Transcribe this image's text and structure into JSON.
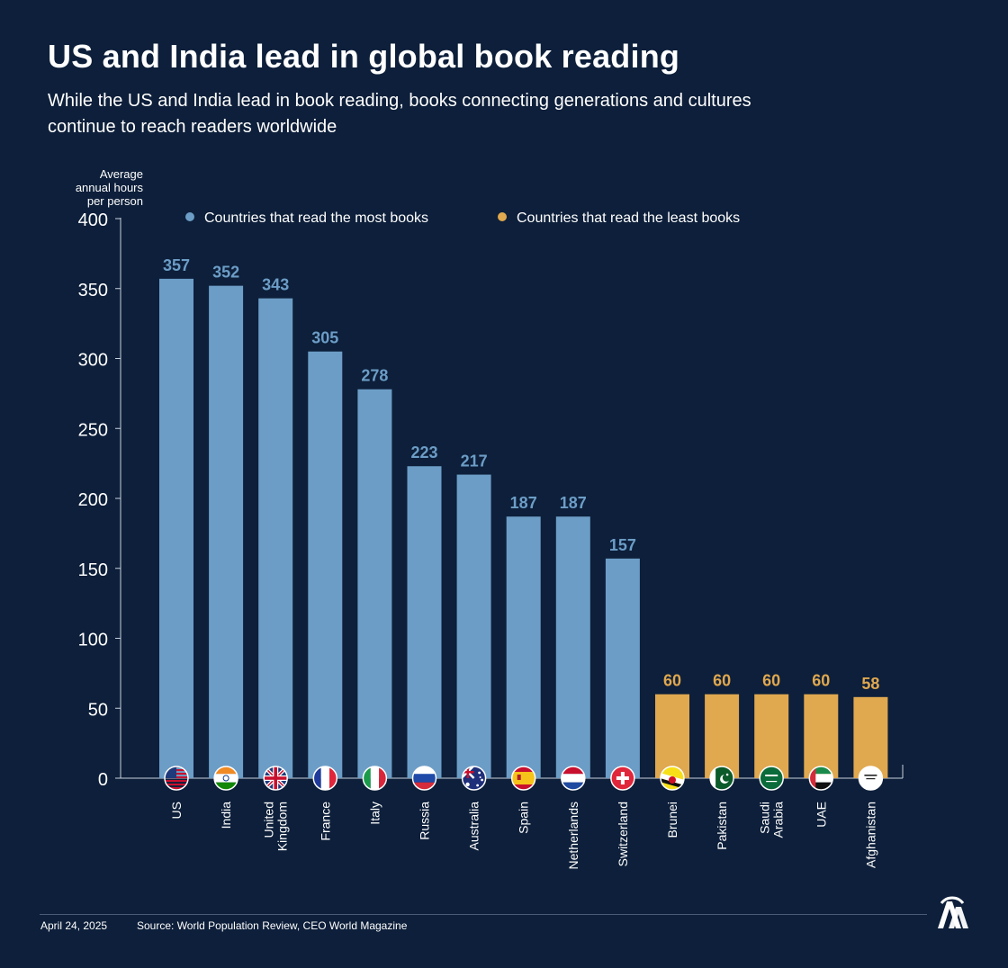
{
  "header": {
    "title": "US and India lead in global book reading",
    "subtitle": "While the US and India lead in book reading, books connecting generations and cultures continue to reach readers worldwide"
  },
  "footer": {
    "date": "April 24, 2025",
    "source": "Source: World Population Review, CEO World Magazine",
    "logo_text": "AA"
  },
  "colors": {
    "background": "#0d1f3a",
    "most": "#6c9dc6",
    "least": "#e0a84f",
    "axis": "#c9d2de"
  },
  "chart_data": {
    "type": "bar",
    "title": "US and India lead in global book reading",
    "ylabel_lines": [
      "Average",
      "annual hours",
      "per person"
    ],
    "ylim": [
      0,
      400
    ],
    "yticks": [
      0,
      50,
      100,
      150,
      200,
      250,
      300,
      350,
      400
    ],
    "legend": [
      {
        "name": "Countries that read the most books",
        "color": "#6c9dc6"
      },
      {
        "name": "Countries that read the least books",
        "color": "#e0a84f"
      }
    ],
    "categories": [
      {
        "label": [
          "US"
        ],
        "value": 357,
        "group": "most",
        "flag": "us-flag-icon"
      },
      {
        "label": [
          "India"
        ],
        "value": 352,
        "group": "most",
        "flag": "india-flag-icon"
      },
      {
        "label": [
          "United",
          "Kingdom"
        ],
        "value": 343,
        "group": "most",
        "flag": "uk-flag-icon"
      },
      {
        "label": [
          "France"
        ],
        "value": 305,
        "group": "most",
        "flag": "france-flag-icon"
      },
      {
        "label": [
          "Italy"
        ],
        "value": 278,
        "group": "most",
        "flag": "italy-flag-icon"
      },
      {
        "label": [
          "Russia"
        ],
        "value": 223,
        "group": "most",
        "flag": "russia-flag-icon"
      },
      {
        "label": [
          "Australia"
        ],
        "value": 217,
        "group": "most",
        "flag": "australia-flag-icon"
      },
      {
        "label": [
          "Spain"
        ],
        "value": 187,
        "group": "most",
        "flag": "spain-flag-icon"
      },
      {
        "label": [
          "Netherlands"
        ],
        "value": 187,
        "group": "most",
        "flag": "netherlands-flag-icon"
      },
      {
        "label": [
          "Switzerland"
        ],
        "value": 157,
        "group": "most",
        "flag": "switzerland-flag-icon"
      },
      {
        "label": [
          "Brunei"
        ],
        "value": 60,
        "group": "least",
        "flag": "brunei-flag-icon"
      },
      {
        "label": [
          "Pakistan"
        ],
        "value": 60,
        "group": "least",
        "flag": "pakistan-flag-icon"
      },
      {
        "label": [
          "Saudi",
          "Arabia"
        ],
        "value": 60,
        "group": "least",
        "flag": "saudi-arabia-flag-icon"
      },
      {
        "label": [
          "UAE"
        ],
        "value": 60,
        "group": "least",
        "flag": "uae-flag-icon"
      },
      {
        "label": [
          "Afghanistan"
        ],
        "value": 58,
        "group": "least",
        "flag": "afghanistan-flag-icon"
      }
    ]
  }
}
